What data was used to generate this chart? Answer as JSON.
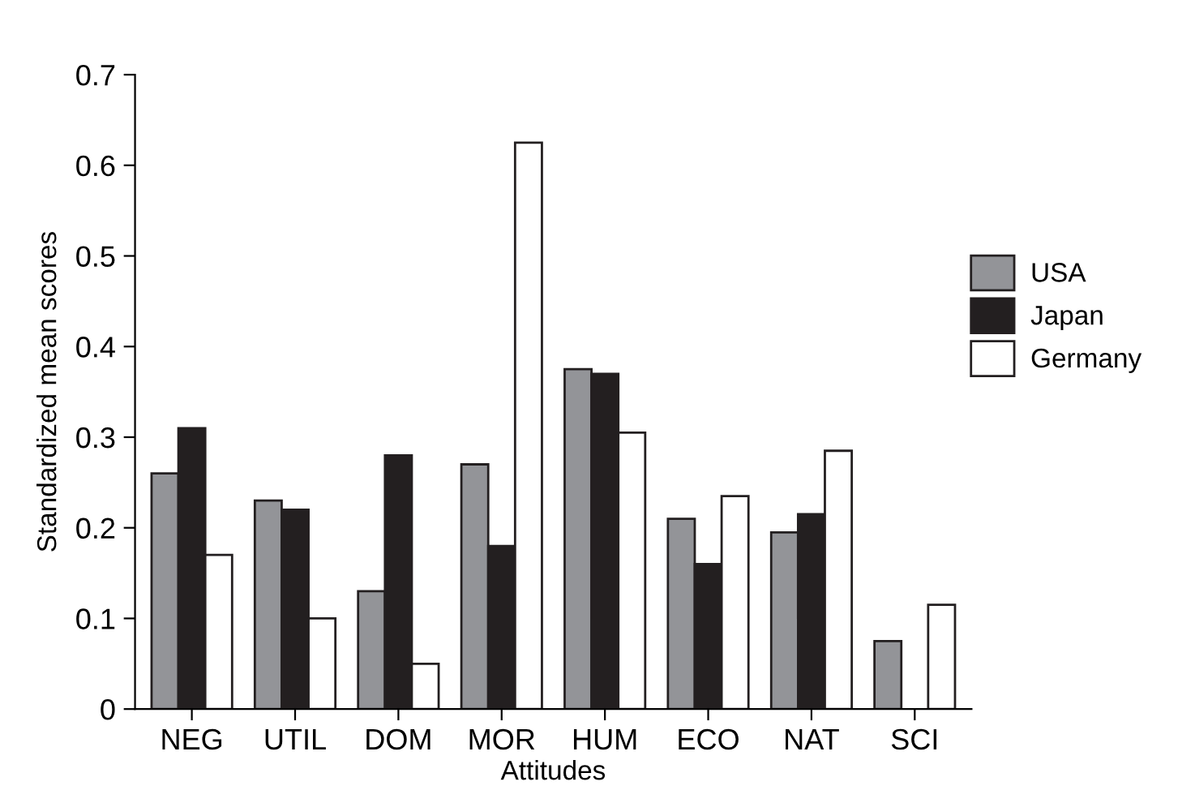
{
  "chart_data": {
    "type": "bar",
    "xlabel": "Attitudes",
    "ylabel": "Standardized mean scores",
    "categories": [
      "NEG",
      "UTIL",
      "DOM",
      "MOR",
      "HUM",
      "ECO",
      "NAT",
      "SCI"
    ],
    "series": [
      {
        "name": "USA",
        "color": "#939498",
        "values": [
          0.26,
          0.23,
          0.13,
          0.27,
          0.375,
          0.21,
          0.195,
          0.075
        ]
      },
      {
        "name": "Japan",
        "color": "#231f20",
        "values": [
          0.31,
          0.22,
          0.28,
          0.18,
          0.37,
          0.16,
          0.215,
          null
        ]
      },
      {
        "name": "Germany",
        "color": "#ffffff",
        "values": [
          0.17,
          0.1,
          0.05,
          0.625,
          0.305,
          0.235,
          0.285,
          0.115
        ]
      }
    ],
    "ylim": [
      0,
      0.7
    ],
    "yticks": [
      0,
      0.1,
      0.2,
      0.3,
      0.4,
      0.5,
      0.6,
      0.7
    ],
    "grid": false,
    "legend": "right"
  }
}
